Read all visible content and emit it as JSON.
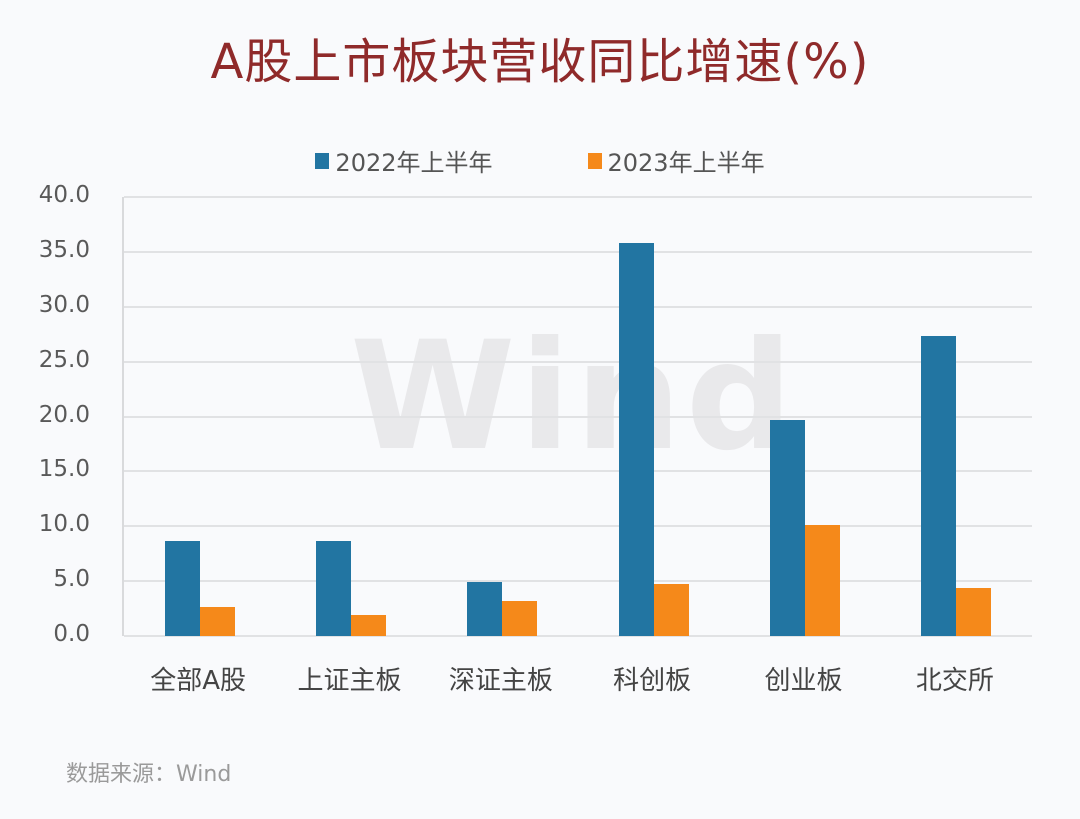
{
  "title": "A股上市板块营收同比增速(%)",
  "legend": [
    {
      "label": "2022年上半年",
      "color": "#2275a2"
    },
    {
      "label": "2023年上半年",
      "color": "#f5891a"
    }
  ],
  "watermark": "Wind",
  "source": "数据来源：Wind",
  "y_ticks": [
    "40.0",
    "35.0",
    "30.0",
    "25.0",
    "20.0",
    "15.0",
    "10.0",
    "5.0",
    "0.0"
  ],
  "chart_data": {
    "type": "bar",
    "title": "A股上市板块营收同比增速(%)",
    "xlabel": "",
    "ylabel": "",
    "categories": [
      "全部A股",
      "上证主板",
      "深证主板",
      "科创板",
      "创业板",
      "北交所"
    ],
    "series": [
      {
        "name": "2022年上半年",
        "color": "#2275a2",
        "values": [
          8.7,
          8.7,
          4.9,
          35.8,
          19.7,
          27.3
        ]
      },
      {
        "name": "2023年上半年",
        "color": "#f5891a",
        "values": [
          2.6,
          1.9,
          3.2,
          4.7,
          10.1,
          4.4
        ]
      }
    ],
    "ylim": [
      0,
      40
    ],
    "y_tick_step": 5,
    "grid": true,
    "legend_position": "top",
    "source": "数据来源：Wind"
  }
}
